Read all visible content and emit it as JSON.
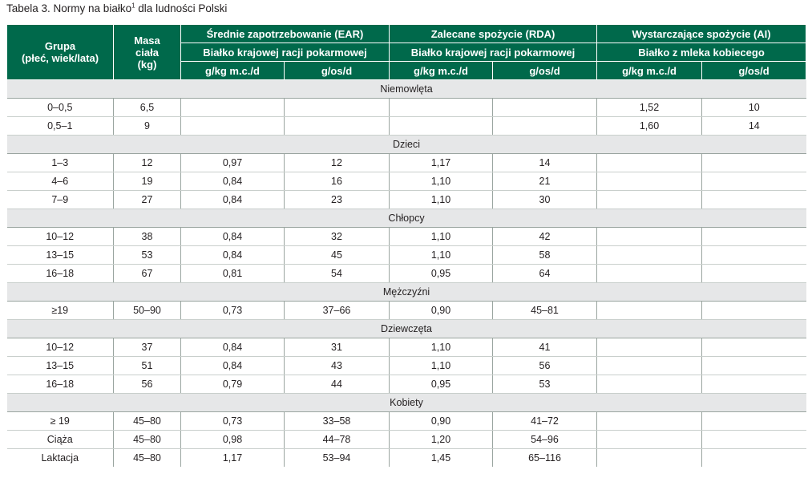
{
  "caption": {
    "text": "Tabela 3. Normy na białko",
    "sup": "1",
    "suffix": " dla ludności Polski"
  },
  "header": {
    "grupa": "Grupa",
    "grupa_sub": "(płeć, wiek/lata)",
    "masa": "Masa",
    "masa_sub": "ciała",
    "masa_unit": "(kg)",
    "ear": "Średnie zapotrzebowanie (EAR)",
    "rda": "Zalecane spożycie (RDA)",
    "ai": "Wystarczające spożycie (AI)",
    "ear_src": "Białko krajowej racji pokarmowej",
    "rda_src": "Białko krajowej racji pokarmowej",
    "ai_src": "Białko z mleka kobiecego",
    "u1": "g/kg m.c./d",
    "u2": "g/os/d",
    "u3": "g/kg m.c./d",
    "u4": "g/os/d",
    "u5": "g/kg m.c./d",
    "u6": "g/os/d"
  },
  "sections": [
    {
      "title": "Niemowlęta",
      "rows": [
        [
          "0–0,5",
          "6,5",
          "",
          "",
          "",
          "",
          "1,52",
          "10"
        ],
        [
          "0,5–1",
          "9",
          "",
          "",
          "",
          "",
          "1,60",
          "14"
        ]
      ]
    },
    {
      "title": "Dzieci",
      "rows": [
        [
          "1–3",
          "12",
          "0,97",
          "12",
          "1,17",
          "14",
          "",
          ""
        ],
        [
          "4–6",
          "19",
          "0,84",
          "16",
          "1,10",
          "21",
          "",
          ""
        ],
        [
          "7–9",
          "27",
          "0,84",
          "23",
          "1,10",
          "30",
          "",
          ""
        ]
      ]
    },
    {
      "title": "Chłopcy",
      "rows": [
        [
          "10–12",
          "38",
          "0,84",
          "32",
          "1,10",
          "42",
          "",
          ""
        ],
        [
          "13–15",
          "53",
          "0,84",
          "45",
          "1,10",
          "58",
          "",
          ""
        ],
        [
          "16–18",
          "67",
          "0,81",
          "54",
          "0,95",
          "64",
          "",
          ""
        ]
      ]
    },
    {
      "title": "Mężczyźni",
      "rows": [
        [
          "≥19",
          "50–90",
          "0,73",
          "37–66",
          "0,90",
          "45–81",
          "",
          ""
        ]
      ]
    },
    {
      "title": "Dziewczęta",
      "rows": [
        [
          "10–12",
          "37",
          "0,84",
          "31",
          "1,10",
          "41",
          "",
          ""
        ],
        [
          "13–15",
          "51",
          "0,84",
          "43",
          "1,10",
          "56",
          "",
          ""
        ],
        [
          "16–18",
          "56",
          "0,79",
          "44",
          "0,95",
          "53",
          "",
          ""
        ]
      ]
    },
    {
      "title": "Kobiety",
      "rows": [
        [
          "≥ 19",
          "45–80",
          "0,73",
          "33–58",
          "0,90",
          "41–72",
          "",
          ""
        ],
        [
          "Ciąża",
          "45–80",
          "0,98",
          "44–78",
          "1,20",
          "54–96",
          "",
          ""
        ],
        [
          "Laktacja",
          "45–80",
          "1,17",
          "53–94",
          "1,45",
          "65–116",
          "",
          ""
        ]
      ]
    }
  ]
}
